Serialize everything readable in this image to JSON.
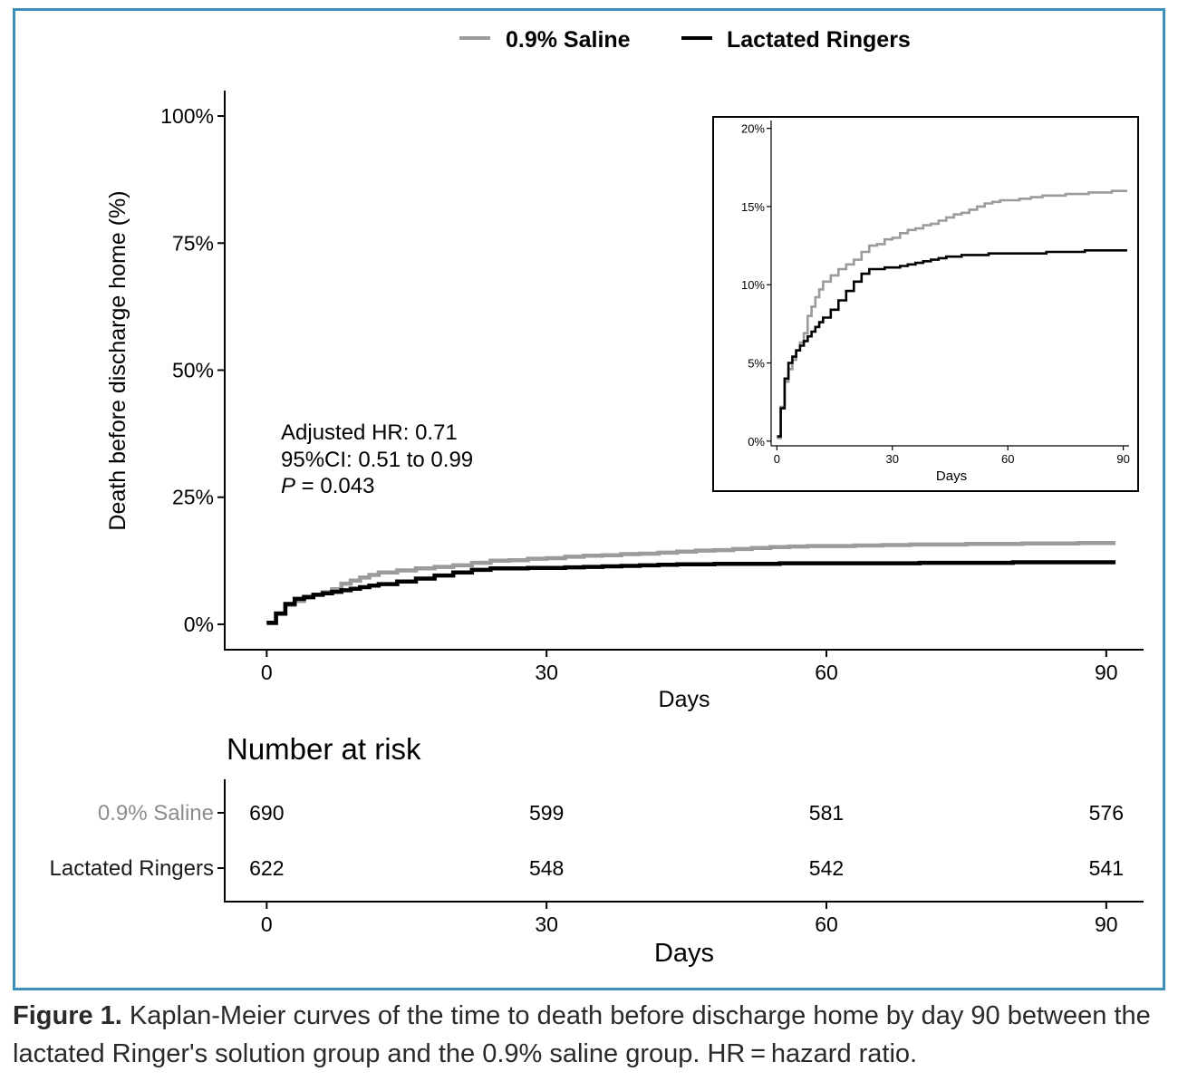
{
  "chart_data": {
    "type": "line",
    "subtype": "kaplan-meier step",
    "legend": {
      "position": "top",
      "entries": [
        {
          "name": "0.9% Saline",
          "color": "#9b9b9b"
        },
        {
          "name": "Lactated Ringers",
          "color": "#000000"
        }
      ]
    },
    "main": {
      "xlabel": "Days",
      "ylabel": "Death before discharge home (%)",
      "xlim": [
        -4.5,
        94
      ],
      "ylim": [
        -5,
        105
      ],
      "xticks": [
        0,
        30,
        60,
        90
      ],
      "xtick_labels": [
        "0",
        "30",
        "60",
        "90"
      ],
      "yticks": [
        0,
        25,
        50,
        75,
        100
      ],
      "ytick_labels": [
        "0%",
        "25%",
        "50%",
        "75%",
        "100%"
      ],
      "annotation": {
        "line1": "Adjusted HR: 0.71",
        "line2": "95%CI: 0.51 to 0.99",
        "p_label": "P",
        "p_value": " = 0.043"
      }
    },
    "inset": {
      "xlabel": "Days",
      "xlim": [
        -1.5,
        91.5
      ],
      "ylim": [
        -0.3,
        20.5
      ],
      "xticks": [
        0,
        30,
        60,
        90
      ],
      "xtick_labels": [
        "0",
        "30",
        "60",
        "90"
      ],
      "yticks": [
        0,
        5,
        10,
        15,
        20
      ],
      "ytick_labels": [
        "0%",
        "5%",
        "10%",
        "15%",
        "20%"
      ]
    },
    "series": [
      {
        "name": "0.9% Saline",
        "color": "#9b9b9b",
        "x": [
          0,
          1,
          2,
          3,
          4,
          5,
          6,
          7,
          8,
          9,
          10,
          11,
          12,
          14,
          16,
          18,
          20,
          22,
          24,
          26,
          28,
          30,
          32,
          34,
          36,
          38,
          40,
          42,
          44,
          46,
          48,
          50,
          52,
          54,
          56,
          58,
          60,
          63,
          66,
          69,
          72,
          75,
          78,
          81,
          84,
          87,
          90,
          91
        ],
        "y": [
          0.2,
          2.2,
          3.8,
          4.6,
          5.2,
          5.8,
          6.3,
          6.9,
          8.0,
          8.6,
          9.2,
          9.7,
          10.2,
          10.6,
          11.0,
          11.3,
          11.6,
          12.1,
          12.5,
          12.6,
          12.9,
          13.0,
          13.3,
          13.5,
          13.6,
          13.8,
          13.9,
          14.1,
          14.3,
          14.5,
          14.6,
          14.8,
          15.0,
          15.2,
          15.3,
          15.4,
          15.4,
          15.5,
          15.6,
          15.7,
          15.7,
          15.8,
          15.8,
          15.9,
          15.9,
          16.0,
          16.0,
          16.0
        ]
      },
      {
        "name": "Lactated Ringers",
        "color": "#000000",
        "x": [
          0,
          1,
          2,
          3,
          4,
          5,
          6,
          7,
          8,
          9,
          10,
          11,
          12,
          14,
          16,
          18,
          20,
          22,
          24,
          26,
          28,
          30,
          32,
          34,
          36,
          38,
          40,
          42,
          44,
          46,
          48,
          50,
          55,
          60,
          65,
          70,
          75,
          80,
          85,
          90,
          91
        ],
        "y": [
          0.3,
          2.1,
          4.0,
          5.0,
          5.4,
          5.8,
          6.1,
          6.4,
          6.7,
          7.0,
          7.3,
          7.6,
          7.9,
          8.4,
          9.0,
          9.6,
          10.2,
          10.7,
          11.0,
          11.0,
          11.1,
          11.1,
          11.2,
          11.3,
          11.4,
          11.5,
          11.6,
          11.7,
          11.8,
          11.8,
          11.9,
          11.9,
          12.0,
          12.0,
          12.0,
          12.1,
          12.1,
          12.2,
          12.2,
          12.2,
          12.2
        ]
      }
    ],
    "risk_table": {
      "title": "Number at risk",
      "xlabel": "Days",
      "times": [
        0,
        30,
        60,
        90
      ],
      "time_labels": [
        "0",
        "30",
        "60",
        "90"
      ],
      "rows": [
        {
          "name": "0.9% Saline",
          "color": "#8c8c8c",
          "values": [
            "690",
            "599",
            "581",
            "576"
          ]
        },
        {
          "name": "Lactated Ringers",
          "color": "#1a1a1a",
          "values": [
            "622",
            "548",
            "542",
            "541"
          ]
        }
      ]
    }
  },
  "caption": {
    "label": "Figure 1.",
    "text": " Kaplan-Meier curves of the time to death before discharge home by day 90 between the lactated Ringer's solution group and the 0.9% saline group. HR = hazard ratio."
  }
}
